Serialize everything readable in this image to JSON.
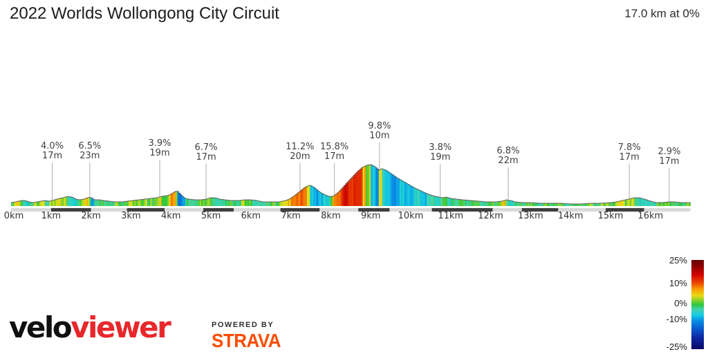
{
  "header": {
    "title": "2022 Worlds Wollongong City Circuit",
    "stat": "17.0 km at 0%"
  },
  "chart_data": {
    "type": "area",
    "title": "2022 Worlds Wollongong City Circuit",
    "subtitle": "17.0 km at 0%",
    "x_unit": "km",
    "x_range": [
      0,
      17
    ],
    "grid": false,
    "x_ticks": [
      "0km",
      "1km",
      "2km",
      "3km",
      "4km",
      "5km",
      "6km",
      "7km",
      "8km",
      "9km",
      "10km",
      "11km",
      "12km",
      "13km",
      "14km",
      "15km",
      "16km"
    ],
    "profile_points_km_elev": [
      [
        0.0,
        5
      ],
      [
        0.12,
        6
      ],
      [
        0.25,
        8
      ],
      [
        0.35,
        8
      ],
      [
        0.45,
        6
      ],
      [
        0.55,
        5
      ],
      [
        0.65,
        6
      ],
      [
        0.75,
        7
      ],
      [
        0.85,
        8
      ],
      [
        0.95,
        7
      ],
      [
        1.03,
        8
      ],
      [
        1.15,
        10
      ],
      [
        1.3,
        12
      ],
      [
        1.42,
        14
      ],
      [
        1.52,
        13
      ],
      [
        1.62,
        10
      ],
      [
        1.72,
        9
      ],
      [
        1.82,
        10
      ],
      [
        1.92,
        12
      ],
      [
        1.98,
        13
      ],
      [
        2.08,
        9
      ],
      [
        2.2,
        9
      ],
      [
        2.32,
        8
      ],
      [
        2.45,
        7
      ],
      [
        2.6,
        6
      ],
      [
        2.75,
        6
      ],
      [
        2.9,
        7
      ],
      [
        3.05,
        8
      ],
      [
        3.2,
        9
      ],
      [
        3.35,
        10
      ],
      [
        3.5,
        11
      ],
      [
        3.65,
        12
      ],
      [
        3.78,
        14
      ],
      [
        3.9,
        15
      ],
      [
        4.0,
        17
      ],
      [
        4.08,
        20
      ],
      [
        4.15,
        22
      ],
      [
        4.25,
        16
      ],
      [
        4.35,
        11
      ],
      [
        4.45,
        10
      ],
      [
        4.6,
        9
      ],
      [
        4.75,
        9
      ],
      [
        4.88,
        10
      ],
      [
        5.0,
        12
      ],
      [
        5.1,
        12
      ],
      [
        5.22,
        10
      ],
      [
        5.35,
        9
      ],
      [
        5.5,
        8
      ],
      [
        5.7,
        8
      ],
      [
        5.85,
        9
      ],
      [
        6.0,
        9
      ],
      [
        6.15,
        8
      ],
      [
        6.3,
        6
      ],
      [
        6.5,
        6
      ],
      [
        6.7,
        6
      ],
      [
        6.88,
        8
      ],
      [
        7.0,
        11
      ],
      [
        7.12,
        16
      ],
      [
        7.25,
        22
      ],
      [
        7.38,
        28
      ],
      [
        7.48,
        30
      ],
      [
        7.58,
        27
      ],
      [
        7.7,
        21
      ],
      [
        7.82,
        17
      ],
      [
        7.95,
        14
      ],
      [
        8.06,
        14
      ],
      [
        8.18,
        19
      ],
      [
        8.3,
        26
      ],
      [
        8.42,
        34
      ],
      [
        8.55,
        42
      ],
      [
        8.68,
        50
      ],
      [
        8.8,
        56
      ],
      [
        8.9,
        59
      ],
      [
        9.0,
        60
      ],
      [
        9.1,
        57
      ],
      [
        9.2,
        52
      ],
      [
        9.28,
        54
      ],
      [
        9.38,
        52
      ],
      [
        9.5,
        47
      ],
      [
        9.65,
        41
      ],
      [
        9.8,
        36
      ],
      [
        9.95,
        31
      ],
      [
        10.1,
        26
      ],
      [
        10.25,
        22
      ],
      [
        10.4,
        18
      ],
      [
        10.55,
        15
      ],
      [
        10.7,
        13
      ],
      [
        10.8,
        12
      ],
      [
        10.9,
        13
      ],
      [
        11.0,
        11
      ],
      [
        11.15,
        10
      ],
      [
        11.3,
        9
      ],
      [
        11.5,
        8
      ],
      [
        11.7,
        7
      ],
      [
        11.9,
        6
      ],
      [
        12.1,
        6
      ],
      [
        12.28,
        7
      ],
      [
        12.4,
        9
      ],
      [
        12.5,
        8
      ],
      [
        12.62,
        6
      ],
      [
        12.8,
        5
      ],
      [
        13.0,
        5
      ],
      [
        13.25,
        4
      ],
      [
        13.5,
        4
      ],
      [
        13.75,
        4
      ],
      [
        14.0,
        3
      ],
      [
        14.25,
        3
      ],
      [
        14.5,
        4
      ],
      [
        14.75,
        4
      ],
      [
        15.0,
        5
      ],
      [
        15.15,
        6
      ],
      [
        15.3,
        8
      ],
      [
        15.45,
        10
      ],
      [
        15.6,
        12
      ],
      [
        15.72,
        12
      ],
      [
        15.85,
        10
      ],
      [
        16.0,
        7
      ],
      [
        16.15,
        5
      ],
      [
        16.3,
        5
      ],
      [
        16.45,
        6
      ],
      [
        16.6,
        6
      ],
      [
        16.75,
        5
      ],
      [
        16.9,
        5
      ],
      [
        17.0,
        5
      ]
    ],
    "annotations": [
      {
        "km": 1.03,
        "grade": "4.0%",
        "height": "17m",
        "label_y": 205
      },
      {
        "km": 1.97,
        "grade": "6.5%",
        "height": "23m",
        "label_y": 205
      },
      {
        "km": 3.72,
        "grade": "3.9%",
        "height": "19m",
        "label_y": 201
      },
      {
        "km": 4.88,
        "grade": "6.7%",
        "height": "17m",
        "label_y": 207
      },
      {
        "km": 7.23,
        "grade": "11.2%",
        "height": "20m",
        "label_y": 206
      },
      {
        "km": 8.09,
        "grade": "15.8%",
        "height": "17m",
        "label_y": 206
      },
      {
        "km": 9.22,
        "grade": "9.8%",
        "height": "10m",
        "label_y": 176
      },
      {
        "km": 10.74,
        "grade": "3.8%",
        "height": "19m",
        "label_y": 207
      },
      {
        "km": 12.44,
        "grade": "6.8%",
        "height": "22m",
        "label_y": 212
      },
      {
        "km": 15.47,
        "grade": "7.8%",
        "height": "17m",
        "label_y": 207
      },
      {
        "km": 16.47,
        "grade": "2.9%",
        "height": "17m",
        "label_y": 213
      }
    ],
    "climb_bars_km": [
      [
        1.0,
        2.0
      ],
      [
        2.9,
        3.84
      ],
      [
        4.81,
        5.57
      ],
      [
        6.74,
        7.72
      ],
      [
        8.69,
        9.47
      ],
      [
        10.53,
        12.05
      ],
      [
        12.78,
        13.69
      ],
      [
        14.88,
        15.84
      ]
    ],
    "legend": {
      "labels": [
        {
          "text": "25%",
          "pos": 0.015
        },
        {
          "text": "10%",
          "pos": 0.27
        },
        {
          "text": "0%",
          "pos": 0.495
        },
        {
          "text": "-10%",
          "pos": 0.675
        },
        {
          "text": "-25%",
          "pos": 0.985
        }
      ],
      "stops": [
        [
          0.0,
          "#640000"
        ],
        [
          0.09,
          "#9c0000"
        ],
        [
          0.17,
          "#d40400"
        ],
        [
          0.26,
          "#ee4a00"
        ],
        [
          0.33,
          "#f7a102"
        ],
        [
          0.4,
          "#e9da16"
        ],
        [
          0.455,
          "#86d02e"
        ],
        [
          0.5,
          "#2cc83e"
        ],
        [
          0.555,
          "#40d2ae"
        ],
        [
          0.62,
          "#16cce6"
        ],
        [
          0.675,
          "#0892e6"
        ],
        [
          0.78,
          "#0c54cc"
        ],
        [
          0.88,
          "#0c249e"
        ],
        [
          1.0,
          "#0a0766"
        ]
      ]
    },
    "gradient_color_anchors": [
      [
        25,
        "#5e0000"
      ],
      [
        18,
        "#900000"
      ],
      [
        14,
        "#c80400"
      ],
      [
        11,
        "#e22c00"
      ],
      [
        9,
        "#ef5c00"
      ],
      [
        7,
        "#f68e00"
      ],
      [
        5,
        "#f2c00c"
      ],
      [
        3.5,
        "#e6e11c"
      ],
      [
        2,
        "#9cd42a"
      ],
      [
        0.8,
        "#4ecc34"
      ],
      [
        0,
        "#2cc83e"
      ],
      [
        -0.8,
        "#3ccf86"
      ],
      [
        -2,
        "#4ad4a4"
      ],
      [
        -4,
        "#22d2cc"
      ],
      [
        -6,
        "#12c0e8"
      ],
      [
        -8,
        "#0aa0e8"
      ],
      [
        -10,
        "#0886e2"
      ],
      [
        -13,
        "#0c5ccf"
      ],
      [
        -17,
        "#0c32ae"
      ],
      [
        -25,
        "#0a0866"
      ]
    ]
  },
  "footer": {
    "brand_black": "velo",
    "brand_red": "viewer",
    "powered_by": "POWERED BY",
    "strava": "STRAVA"
  },
  "colors": {
    "brand_red": "#e8282c",
    "brand_black": "#101010",
    "strava_orange": "#fc4c02",
    "annotation_line": "#ababab",
    "outline": "#5f5f5f",
    "base_bar_light": "#d9d9d9",
    "base_bar_dark": "#3f3f3f"
  }
}
